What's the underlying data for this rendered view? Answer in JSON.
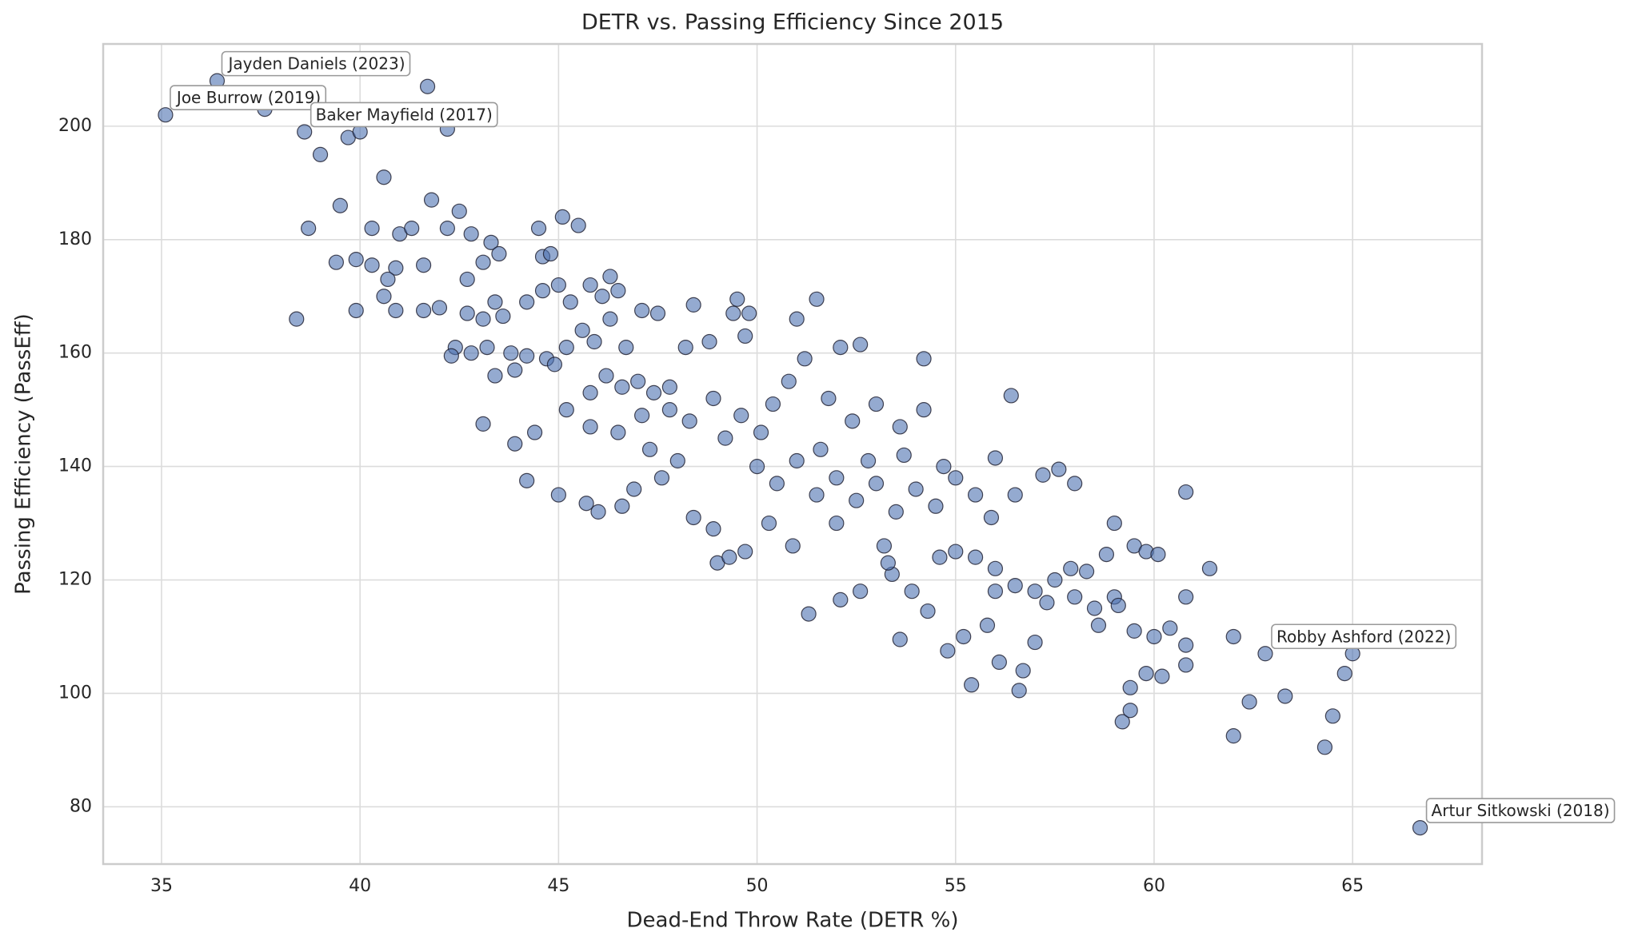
{
  "chart_data": {
    "type": "scatter",
    "title": "DETR vs. Passing Efficiency Since 2015",
    "x_label": "Dead-End Throw Rate (DETR %)",
    "y_label": "Passing Efficiency (PassEff)",
    "color": "#4c72b0",
    "grid": true,
    "xlim": [
      33.53,
      68.26
    ],
    "ylim": [
      69.9,
      214.5
    ],
    "xticks": [
      35,
      40,
      45,
      50,
      55,
      60,
      65
    ],
    "yticks": [
      80,
      100,
      120,
      140,
      160,
      180,
      200
    ],
    "x": [
      35.1,
      36.4,
      37.6,
      38.6,
      39.7,
      40.0,
      41.7,
      42.2,
      39.0,
      40.6,
      39.5,
      41.8,
      42.5,
      38.7,
      40.3,
      41.0,
      41.3,
      42.2,
      42.8,
      39.4,
      39.9,
      40.3,
      40.9,
      41.6,
      40.7,
      42.7,
      43.3,
      43.5,
      43.1,
      38.4,
      39.9,
      40.9,
      41.6,
      42.0,
      40.6,
      42.7,
      43.1,
      43.6,
      43.4,
      44.2,
      44.5,
      45.1,
      45.5,
      44.6,
      44.8,
      45.0,
      44.6,
      45.3,
      45.8,
      46.1,
      46.3,
      46.5,
      42.4,
      42.3,
      42.8,
      43.2,
      43.8,
      44.2,
      43.4,
      43.9,
      44.7,
      44.9,
      45.2,
      45.6,
      45.9,
      46.3,
      46.7,
      47.1,
      47.5,
      45.8,
      46.2,
      46.6,
      47.0,
      47.4,
      47.8,
      48.2,
      48.4,
      48.8,
      49.5,
      49.4,
      49.8,
      49.7,
      43.1,
      43.9,
      44.2,
      44.4,
      45.0,
      45.7,
      46.0,
      46.6,
      46.9,
      47.3,
      47.6,
      48.0,
      48.4,
      48.9,
      49.0,
      49.3,
      49.7,
      45.2,
      45.8,
      46.5,
      47.1,
      47.8,
      48.3,
      48.9,
      49.2,
      49.6,
      50.1,
      50.4,
      50.8,
      51.2,
      51.5,
      51.0,
      52.1,
      52.6,
      54.2,
      51.8,
      52.4,
      53.0,
      53.6,
      54.2,
      50.0,
      50.5,
      51.0,
      51.5,
      52.0,
      52.5,
      53.0,
      53.5,
      54.0,
      54.5,
      55.0,
      55.5,
      56.0,
      56.4,
      56.5,
      57.2,
      57.6,
      58.0,
      60.8,
      50.3,
      50.9,
      51.3,
      52.1,
      52.6,
      53.4,
      53.6,
      53.9,
      54.3,
      54.8,
      55.2,
      55.4,
      55.8,
      56.1,
      56.6,
      56.7,
      57.0,
      55.0,
      55.5,
      56.0,
      56.5,
      57.0,
      57.5,
      58.0,
      58.5,
      59.0,
      59.5,
      60.0,
      60.4,
      60.8,
      58.3,
      58.8,
      59.0,
      59.5,
      59.8,
      60.1,
      59.1,
      59.2,
      59.4,
      59.4,
      59.8,
      60.2,
      60.8,
      61.4,
      60.8,
      62.0,
      62.0,
      62.4,
      62.8,
      63.3,
      64.3,
      64.5,
      64.8,
      65.0,
      66.7,
      52.0,
      53.2,
      54.6,
      56.0,
      57.3,
      58.6,
      51.6,
      52.8,
      53.7,
      54.7,
      55.9,
      57.9,
      53.3
    ],
    "values": [
      202,
      208,
      203,
      199,
      198,
      199,
      207,
      199.5,
      195,
      191,
      186,
      187,
      185,
      182,
      182,
      181,
      182,
      182,
      181,
      176,
      176.5,
      175.5,
      175,
      175.5,
      173,
      173,
      179.5,
      177.5,
      176,
      166,
      167.5,
      167.5,
      167.5,
      168,
      170,
      167,
      166,
      166.5,
      169,
      169,
      182,
      184,
      182.5,
      177,
      177.5,
      172,
      171,
      169,
      172,
      170,
      173.5,
      171,
      161,
      159.5,
      160,
      161,
      160,
      159.5,
      156,
      157,
      159,
      158,
      161,
      164,
      162,
      166,
      161,
      167.5,
      167,
      153,
      156,
      154,
      155,
      153,
      154,
      161,
      168.5,
      162,
      169.5,
      167,
      167,
      163,
      147.5,
      144,
      137.5,
      146,
      135,
      133.5,
      132,
      133,
      136,
      143,
      138,
      141,
      131,
      129,
      123,
      124,
      125,
      150,
      147,
      146,
      149,
      150,
      148,
      152,
      145,
      149,
      146,
      151,
      155,
      159,
      169.5,
      166,
      161,
      161.5,
      159,
      152,
      148,
      151,
      147,
      150,
      140,
      137,
      141,
      135,
      138,
      134,
      137,
      132,
      136,
      133,
      138,
      135,
      141.5,
      152.5,
      135,
      138.5,
      139.5,
      137,
      135.5,
      130,
      126,
      114,
      116.5,
      118,
      121,
      109.5,
      118,
      114.5,
      107.5,
      110,
      101.5,
      112,
      105.5,
      100.5,
      104,
      109,
      125,
      124,
      122,
      119,
      118,
      120,
      117,
      115,
      117,
      111,
      110,
      111.5,
      108.5,
      121.5,
      124.5,
      130,
      126,
      125,
      124.5,
      115.5,
      95,
      97,
      101,
      103.5,
      103,
      105,
      122,
      117,
      110,
      92.5,
      98.5,
      107,
      99.5,
      90.5,
      96,
      103.5,
      107,
      76.3,
      130,
      126,
      124,
      118,
      116,
      112,
      143,
      141,
      142,
      140,
      131,
      122,
      123
    ],
    "annotations": [
      {
        "text": "Jayden Daniels (2023)",
        "x": 36.4,
        "y": 208
      },
      {
        "text": "Joe Burrow (2019)",
        "x": 35.1,
        "y": 202
      },
      {
        "text": "Baker Mayfield (2017)",
        "x": 38.6,
        "y": 199
      },
      {
        "text": "Robby Ashford (2022)",
        "x": 62.8,
        "y": 107
      },
      {
        "text": "Artur Sitkowski (2018)",
        "x": 66.7,
        "y": 76.3
      }
    ]
  }
}
